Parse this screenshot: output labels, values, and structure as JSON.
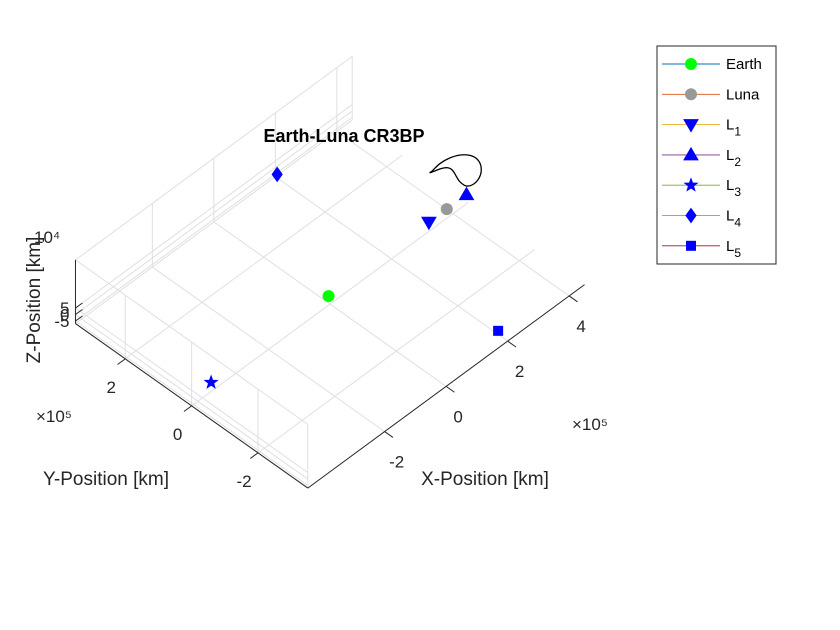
{
  "chart_data": {
    "type": "scatter",
    "projection": "3d",
    "title": "Earth-Luna CR3BP",
    "xlabel": "X-Position [km]",
    "ylabel": "Y-Position [km]",
    "zlabel": "Z-Position [km]",
    "x_exponent": "×10⁵",
    "y_exponent": "×10⁵",
    "z_exponent": "10⁴",
    "x_ticks": [
      "-2",
      "0",
      "2",
      "4"
    ],
    "y_ticks": [
      "-2",
      "0",
      "2"
    ],
    "z_ticks": [
      "-5",
      "0",
      "5"
    ],
    "xlim": [
      -4.5,
      4.5
    ],
    "ylim": [
      -3.5,
      3.5
    ],
    "zlim": [
      -7,
      42
    ],
    "grid": true,
    "legend_position": "top-right",
    "series": [
      {
        "name": "Earth",
        "sub": "",
        "marker": "circle",
        "color": "#00ff00",
        "x": -0.047,
        "y": 0,
        "z": 0
      },
      {
        "name": "Luna",
        "sub": "",
        "marker": "circle",
        "color": "#999999",
        "x": 3.797,
        "y": 0,
        "z": 0
      },
      {
        "name": "L",
        "sub": "1",
        "marker": "triangle-down",
        "color": "#0000ff",
        "x": 3.216,
        "y": 0,
        "z": 0
      },
      {
        "name": "L",
        "sub": "2",
        "marker": "triangle-up",
        "color": "#0000ff",
        "x": 4.439,
        "y": 0,
        "z": 0
      },
      {
        "name": "L",
        "sub": "3",
        "marker": "star",
        "color": "#0000ff",
        "x": -3.867,
        "y": 0,
        "z": 0
      },
      {
        "name": "L",
        "sub": "4",
        "marker": "diamond",
        "color": "#0000ff",
        "x": 1.875,
        "y": 3.329,
        "z": 0
      },
      {
        "name": "L",
        "sub": "5",
        "marker": "square",
        "color": "#0000ff",
        "x": 1.875,
        "y": -3.329,
        "z": 0
      }
    ],
    "legend_line_colors": [
      "#0072bd",
      "#d95319",
      "#edb120",
      "#7e2f8e",
      "#77ac30",
      "#4dbeee",
      "#a2142f"
    ],
    "orbit": {
      "name": "trajectory",
      "color": "#000000",
      "x": [
        3.44,
        3.7,
        4.0,
        4.3,
        4.55,
        4.7,
        4.72,
        4.62,
        4.4,
        4.18,
        4.05,
        4.0,
        3.98,
        3.95,
        3.88,
        3.72,
        3.5,
        3.37,
        3.44
      ],
      "y": [
        0.1,
        0.12,
        0.1,
        0.05,
        -0.02,
        -0.1,
        -0.18,
        -0.24,
        -0.27,
        -0.24,
        -0.17,
        -0.1,
        -0.05,
        0.0,
        0.05,
        0.09,
        0.11,
        0.11,
        0.1
      ],
      "z": [
        34.0,
        34.5,
        34.0,
        32.0,
        28.5,
        24.0,
        19.5,
        15.5,
        14.0,
        15.5,
        19.5,
        23.5,
        26.0,
        28.0,
        29.5,
        31.0,
        32.3,
        33.5,
        34.0
      ]
    }
  }
}
